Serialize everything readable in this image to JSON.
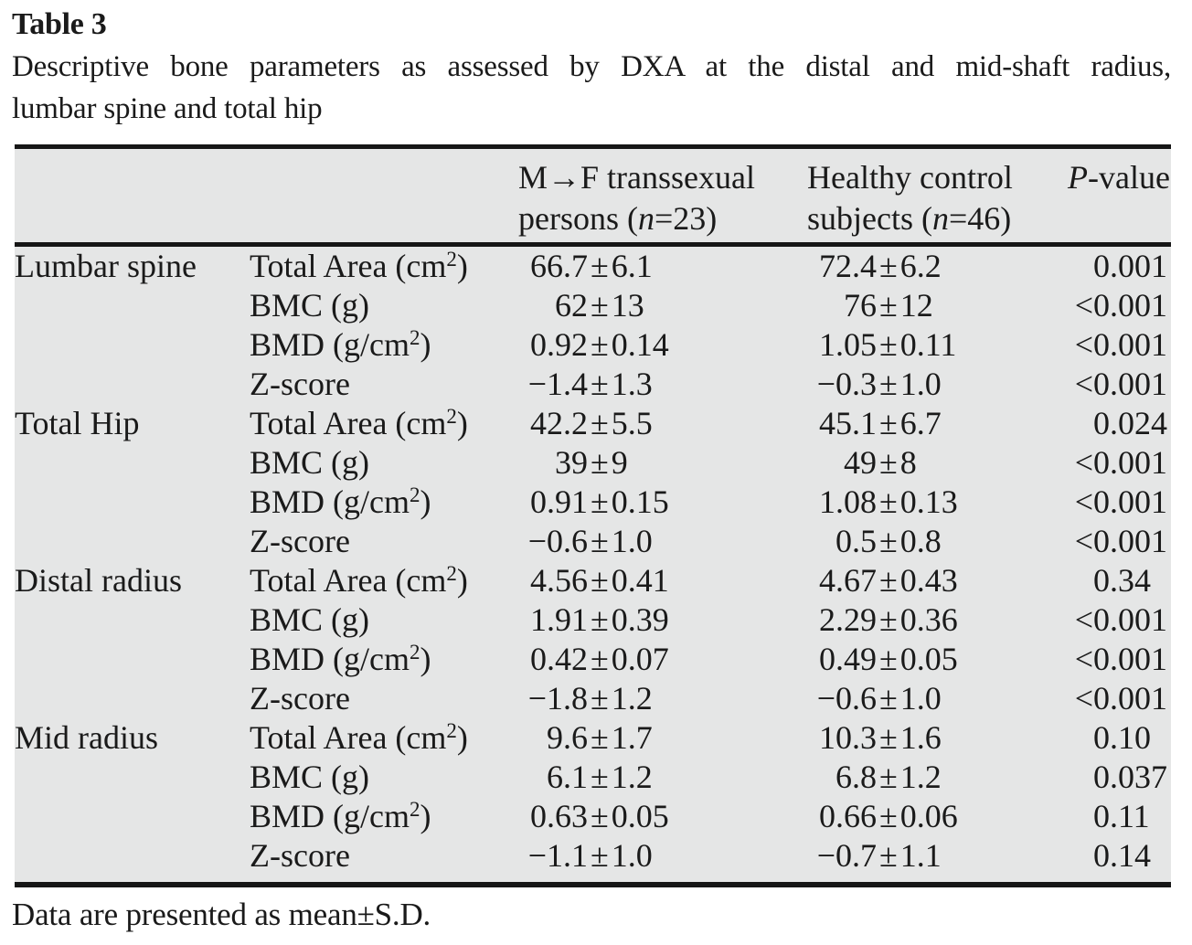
{
  "title": "Table 3",
  "caption_lines": [
    "Descriptive bone parameters as assessed by DXA at the distal and mid-shaft radius,",
    "lumbar spine and total hip"
  ],
  "footnote": "Data are presented as mean±S.D.",
  "colors": {
    "table_background": "#e5e6e6",
    "rule": "#161616",
    "text": "#1a1a1a",
    "page_background": "#ffffff"
  },
  "header": {
    "mf": {
      "line1": "M→F transsexual",
      "line2_pre": "persons (",
      "line2_var": "n",
      "line2_post": "=23)"
    },
    "hc": {
      "line1": "Healthy control",
      "line2_pre": "subjects (",
      "line2_var": "n",
      "line2_post": "=46)"
    },
    "p": {
      "var": "P",
      "suffix": "-value"
    }
  },
  "table": {
    "sections": [
      {
        "label": "Lumbar spine",
        "rows": [
          {
            "param": "Total Area (cm²)",
            "mf": "66.7±6.1",
            "hc": "72.4±6.2",
            "p": "0.001"
          },
          {
            "param": "BMC (g)",
            "mf": "62±13",
            "hc": "76±12",
            "p": "<0.001"
          },
          {
            "param": "BMD (g/cm²)",
            "mf": "0.92±0.14",
            "hc": "1.05±0.11",
            "p": "<0.001"
          },
          {
            "param": "Z-score",
            "mf": "−1.4±1.3",
            "hc": "−0.3±1.0",
            "p": "<0.001"
          }
        ]
      },
      {
        "label": "Total Hip",
        "rows": [
          {
            "param": "Total Area (cm²)",
            "mf": "42.2±5.5",
            "hc": "45.1±6.7",
            "p": "0.024"
          },
          {
            "param": "BMC (g)",
            "mf": "39±9",
            "hc": "49±8",
            "p": "<0.001"
          },
          {
            "param": "BMD (g/cm²)",
            "mf": "0.91±0.15",
            "hc": "1.08±0.13",
            "p": "<0.001"
          },
          {
            "param": "Z-score",
            "mf": "−0.6±1.0",
            "hc": "0.5±0.8",
            "p": "<0.001"
          }
        ]
      },
      {
        "label": "Distal radius",
        "rows": [
          {
            "param": "Total Area (cm²)",
            "mf": "4.56±0.41",
            "hc": "4.67±0.43",
            "p": "0.34"
          },
          {
            "param": "BMC (g)",
            "mf": "1.91±0.39",
            "hc": "2.29±0.36",
            "p": "<0.001"
          },
          {
            "param": "BMD (g/cm²)",
            "mf": "0.42±0.07",
            "hc": "0.49±0.05",
            "p": "<0.001"
          },
          {
            "param": "Z-score",
            "mf": "−1.8±1.2",
            "hc": "−0.6±1.0",
            "p": "<0.001"
          }
        ]
      },
      {
        "label": "Mid radius",
        "rows": [
          {
            "param": "Total Area (cm²)",
            "mf": "9.6±1.7",
            "hc": "10.3±1.6",
            "p": "0.10"
          },
          {
            "param": "BMC (g)",
            "mf": "6.1±1.2",
            "hc": "6.8±1.2",
            "p": "0.037"
          },
          {
            "param": "BMD (g/cm²)",
            "mf": "0.63±0.05",
            "hc": "0.66±0.06",
            "p": "0.11"
          },
          {
            "param": "Z-score",
            "mf": "−1.1±1.0",
            "hc": "−0.7±1.1",
            "p": "0.14"
          }
        ]
      }
    ]
  }
}
